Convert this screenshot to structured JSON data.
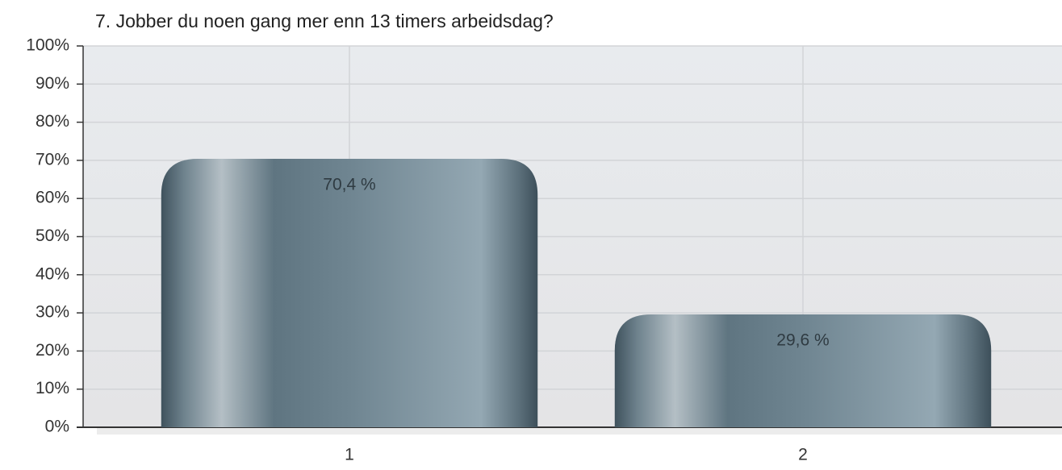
{
  "chart_data": {
    "type": "bar",
    "title": "7. Jobber du noen gang mer enn 13 timers arbeidsdag?",
    "categories": [
      "1",
      "2"
    ],
    "values": [
      70.4,
      29.6
    ],
    "value_labels": [
      "70,4 %",
      "29,6 %"
    ],
    "color": "#6b828f",
    "ylim": [
      0,
      100
    ],
    "yticks": [
      {
        "value": 0,
        "label": "0%"
      },
      {
        "value": 10,
        "label": "10%"
      },
      {
        "value": 20,
        "label": "20%"
      },
      {
        "value": 30,
        "label": "30%"
      },
      {
        "value": 40,
        "label": "40%"
      },
      {
        "value": 50,
        "label": "50%"
      },
      {
        "value": 60,
        "label": "60%"
      },
      {
        "value": 70,
        "label": "70%"
      },
      {
        "value": 80,
        "label": "80%"
      },
      {
        "value": 90,
        "label": "90%"
      },
      {
        "value": 100,
        "label": "100%"
      }
    ],
    "grid": true
  }
}
